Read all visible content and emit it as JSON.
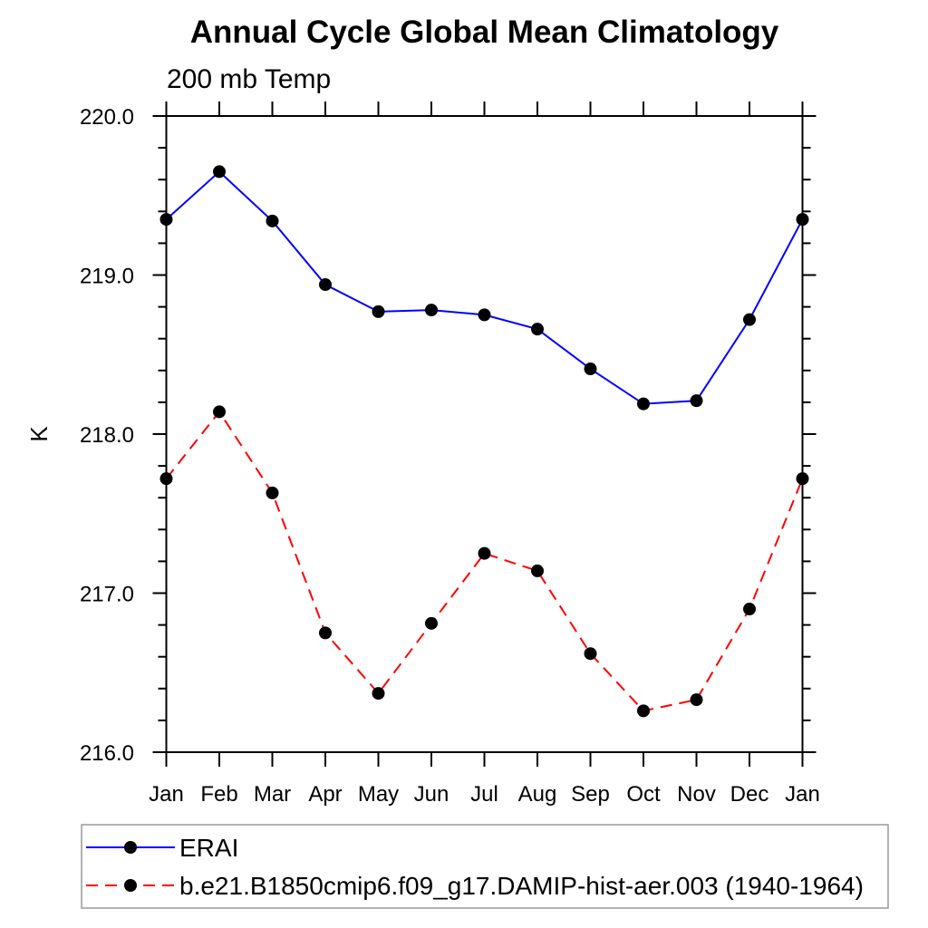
{
  "title": "Annual Cycle Global Mean Climatology",
  "subtitle": "200 mb Temp",
  "chart_data": {
    "type": "line",
    "title": "Annual Cycle Global Mean Climatology",
    "subtitle": "200 mb Temp",
    "xlabel": "",
    "ylabel": "K",
    "categories": [
      "Jan",
      "Feb",
      "Mar",
      "Apr",
      "May",
      "Jun",
      "Jul",
      "Aug",
      "Sep",
      "Oct",
      "Nov",
      "Dec",
      "Jan"
    ],
    "ylim": [
      216.0,
      220.0
    ],
    "ytick_labels": [
      "216.0",
      "217.0",
      "218.0",
      "219.0",
      "220.0"
    ],
    "ytick_values": [
      216.0,
      217.0,
      218.0,
      219.0,
      220.0
    ],
    "ytick_minor_step": 0.2,
    "grid": false,
    "legend_position": "bottom-left",
    "axis_color": "#000000",
    "marker_shape": "filled-circle",
    "marker_color": "#000000",
    "series": [
      {
        "name": "ERAI",
        "color": "#0000ff",
        "line_style": "solid",
        "values": [
          219.35,
          219.65,
          219.34,
          218.94,
          218.77,
          218.78,
          218.75,
          218.66,
          218.41,
          218.19,
          218.21,
          218.72,
          219.35
        ]
      },
      {
        "name": "b.e21.B1850cmip6.f09_g17.DAMIP-hist-aer.003 (1940-1964)",
        "color": "#ff0000",
        "line_style": "dashed",
        "values": [
          217.72,
          218.14,
          217.63,
          216.75,
          216.37,
          216.81,
          217.25,
          217.14,
          216.62,
          216.26,
          216.33,
          216.9,
          217.72
        ]
      }
    ]
  }
}
